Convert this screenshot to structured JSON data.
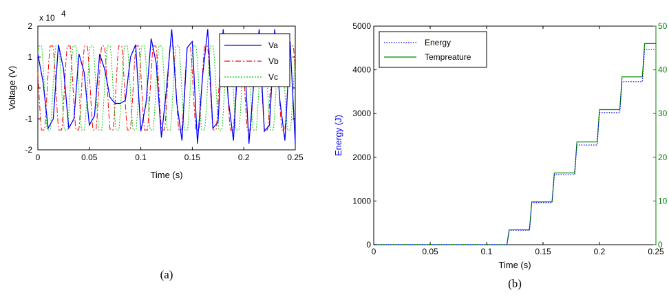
{
  "chart_data": [
    {
      "type": "line",
      "panel_label": "(a)",
      "xlabel": "Time (s)",
      "ylabel": "Voltage (V)",
      "exponent_label": "x 10",
      "exponent_power": "4",
      "xlim": [
        0,
        0.25
      ],
      "ylim": [
        -2,
        2
      ],
      "xticks": [
        "0",
        "0.05",
        "0.1",
        "0.15",
        "0.2",
        "0.25"
      ],
      "yticks": [
        "-2",
        "-1",
        "0",
        "1",
        "2"
      ],
      "grid": false,
      "legend_position": "top-right",
      "series": [
        {
          "name": "Va",
          "color": "#0000ff",
          "style": "solid",
          "description_points": {
            "t": [
              0,
              0.005,
              0.01,
              0.015,
              0.02,
              0.025,
              0.03,
              0.035,
              0.04,
              0.045,
              0.05,
              0.055,
              0.06,
              0.065,
              0.07,
              0.075,
              0.08,
              0.085,
              0.09,
              0.095,
              0.1,
              0.105,
              0.11,
              0.115,
              0.12,
              0.125,
              0.13,
              0.135,
              0.14,
              0.145,
              0.15,
              0.155,
              0.16,
              0.165,
              0.17,
              0.175,
              0.18,
              0.185,
              0.19,
              0.195,
              0.2,
              0.205,
              0.21,
              0.215,
              0.22,
              0.225,
              0.23,
              0.235,
              0.24,
              0.245,
              0.25
            ],
            "v": [
              1.1,
              0.2,
              -1.3,
              -1.0,
              1.4,
              0.6,
              -1.3,
              -1.0,
              1.1,
              0.5,
              -1.2,
              -0.9,
              1.1,
              0.6,
              -0.3,
              -0.5,
              -0.5,
              -0.4,
              1.0,
              1.4,
              -1.4,
              -0.5,
              1.6,
              0.8,
              -1.6,
              0.0,
              1.9,
              -0.5,
              -1.7,
              1.3,
              1.5,
              -1.8,
              0.4,
              1.9,
              -1.3,
              -1.1,
              1.9,
              -0.4,
              -1.7,
              1.3,
              1.4,
              -1.8,
              0.3,
              1.9,
              -1.4,
              -1.2,
              1.9,
              -0.4,
              -1.7,
              1.5,
              -1.8
            ]
          }
        },
        {
          "name": "Vb",
          "color": "#ff0000",
          "style": "dashdot",
          "amplitude": 1.4,
          "frequency_hz": 60
        },
        {
          "name": "Vc",
          "color": "#00cc00",
          "style": "dotted",
          "amplitude": 1.4,
          "frequency_hz": 60
        }
      ]
    },
    {
      "type": "line",
      "panel_label": "(b)",
      "xlabel": "Time (s)",
      "ylabel": "Energy (J)",
      "xlim": [
        0,
        0.25
      ],
      "ylim": [
        0,
        5000
      ],
      "y2lim": [
        0,
        50
      ],
      "xticks": [
        "0",
        "0.05",
        "0.1",
        "0.15",
        "0.2",
        "0.25"
      ],
      "yticks": [
        "0",
        "1000",
        "2000",
        "3000",
        "4000",
        "5000"
      ],
      "y2ticks": [
        "0",
        "10",
        "20",
        "30",
        "40",
        "50"
      ],
      "grid": false,
      "legend_position": "top-left",
      "series": [
        {
          "name": "Energy",
          "color": "#0000ff",
          "style": "dotted",
          "axis": "left",
          "x": [
            0,
            0.118,
            0.12,
            0.138,
            0.14,
            0.158,
            0.16,
            0.178,
            0.18,
            0.198,
            0.2,
            0.218,
            0.22,
            0.238,
            0.24,
            0.25
          ],
          "y": [
            0,
            0,
            330,
            330,
            960,
            960,
            1600,
            1600,
            2280,
            2280,
            3020,
            3020,
            3730,
            3730,
            4470,
            4470
          ]
        },
        {
          "name": "Tempreature",
          "color": "#008000",
          "style": "solid",
          "axis": "right",
          "x": [
            0,
            0.118,
            0.12,
            0.138,
            0.14,
            0.158,
            0.16,
            0.178,
            0.18,
            0.198,
            0.2,
            0.218,
            0.22,
            0.238,
            0.24,
            0.25
          ],
          "y": [
            0,
            0,
            3.4,
            3.4,
            9.8,
            9.8,
            16.4,
            16.4,
            23.5,
            23.5,
            30.9,
            30.9,
            38.4,
            38.4,
            46.0,
            46.0
          ]
        }
      ]
    }
  ],
  "colors": {
    "left_axis_b": "#0000ff",
    "right_axis_b": "#008000"
  }
}
